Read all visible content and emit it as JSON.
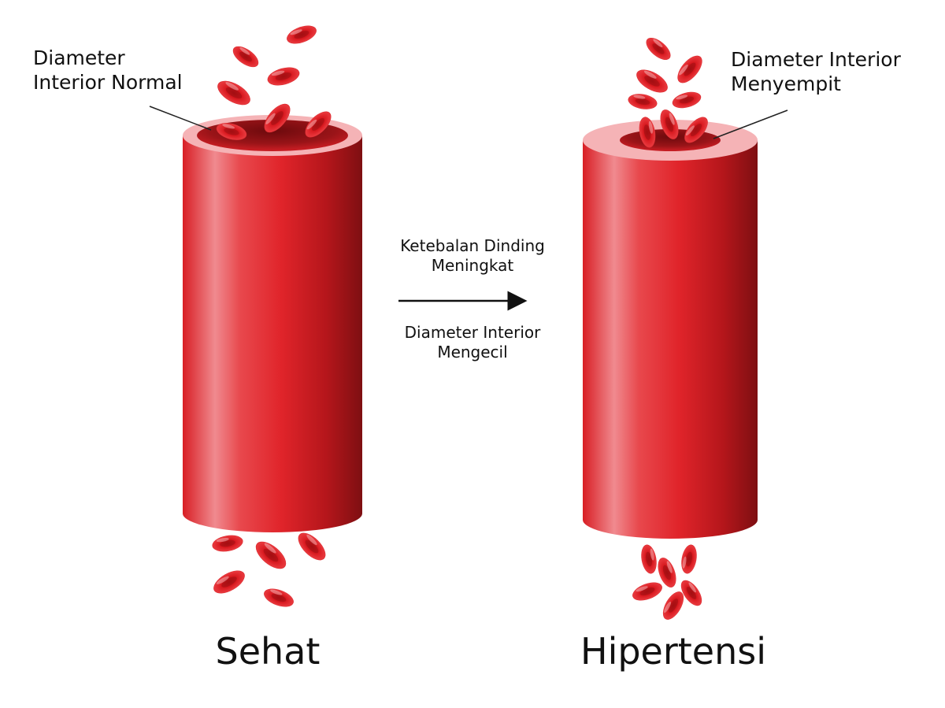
{
  "labels": {
    "normal_line1": "Diameter",
    "normal_line2": "Interior Normal",
    "narrow_line1": "Diameter Interior",
    "narrow_line2": "Menyempit"
  },
  "transition": {
    "top_line1": "Ketebalan Dinding",
    "top_line2": "Meningkat",
    "bottom_line1": "Diameter Interior",
    "bottom_line2": "Mengecil"
  },
  "captions": {
    "left": "Sehat",
    "right": "Hipertensi"
  },
  "colors": {
    "vessel_dark": "#8e1216",
    "vessel_mid": "#e0242a",
    "vessel_light": "#f08a8f",
    "rim": "#f5b3b6",
    "cell": "#d8191f",
    "cell_center": "#a80f13",
    "text": "#111111"
  }
}
